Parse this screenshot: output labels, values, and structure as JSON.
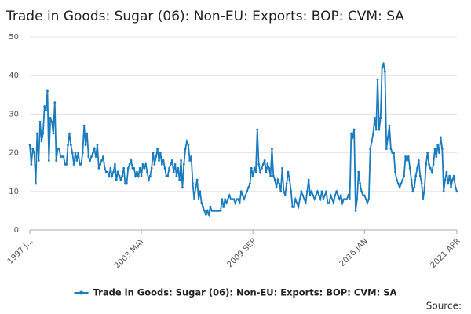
{
  "chart_data": {
    "type": "line",
    "title": "Trade in Goods: Sugar (06): Non-EU: Exports: BOP: CVM: SA",
    "source": "Source:",
    "categories": [
      "1997 J...",
      null,
      null,
      null,
      null,
      null,
      null,
      null,
      null,
      null,
      null,
      null,
      null,
      null,
      null,
      null,
      null,
      null,
      null,
      null,
      null,
      null,
      null,
      null,
      null,
      null,
      null,
      null,
      null,
      null,
      null,
      null,
      null,
      null,
      null,
      null,
      null,
      null,
      null,
      null,
      null,
      null,
      null,
      null,
      null,
      null,
      null,
      null,
      null,
      null,
      null,
      null,
      null,
      null,
      null,
      null,
      null,
      null,
      null,
      null,
      null,
      null,
      null,
      null,
      null,
      null,
      null,
      null,
      null,
      null,
      null,
      null,
      null,
      null,
      null,
      null,
      "2003 MAY",
      null,
      null,
      null,
      null,
      null,
      null,
      null,
      null,
      null,
      null,
      null,
      null,
      null,
      null,
      null,
      null,
      null,
      null,
      null,
      null,
      null,
      null,
      null,
      null,
      null,
      null,
      null,
      null,
      null,
      null,
      null,
      null,
      null,
      null,
      null,
      null,
      null,
      null,
      null,
      null,
      null,
      null,
      null,
      null,
      null,
      null,
      null,
      null,
      null,
      null,
      null,
      null,
      null,
      null,
      null,
      null,
      null,
      null,
      null,
      null,
      null,
      null,
      null,
      null,
      null,
      null,
      null,
      null,
      null,
      null,
      null,
      null,
      null,
      null,
      null,
      "2009 SEP",
      null,
      null,
      null,
      null,
      null,
      null,
      null,
      null,
      null,
      null,
      null,
      null,
      null,
      null,
      null,
      null,
      null,
      null,
      null,
      null,
      null,
      null,
      null,
      null,
      null,
      null,
      null,
      null,
      null,
      null,
      null,
      null,
      null,
      null,
      null,
      null,
      null,
      null,
      null,
      null,
      null,
      null,
      null,
      null,
      null,
      null,
      null,
      null,
      null,
      null,
      null,
      null,
      null,
      null,
      null,
      null,
      null,
      null,
      null,
      null,
      null,
      null,
      null,
      null,
      null,
      null,
      null,
      null,
      null,
      null,
      null,
      null,
      null,
      null,
      null,
      "2016 JAN",
      null,
      null,
      null,
      null,
      null,
      null,
      null,
      null,
      null,
      null,
      null,
      null,
      null,
      null,
      null,
      null,
      null,
      null,
      null,
      null,
      null,
      null,
      null,
      null,
      null,
      null,
      null,
      null,
      null,
      null,
      null,
      null,
      null,
      null,
      null,
      null,
      null,
      null,
      null,
      null,
      null,
      null,
      null,
      null,
      null,
      null,
      null,
      null,
      null,
      null,
      null,
      null,
      null,
      null,
      null,
      null,
      null,
      null,
      null,
      null,
      null,
      null,
      "2021 APR"
    ],
    "series": [
      {
        "name": "Trade in Goods: Sugar (06): Non-EU: Exports: BOP: CVM: SA",
        "color": "#1a7bbf",
        "values": [
          22,
          17,
          21,
          20,
          12,
          25,
          18,
          28,
          23,
          25,
          32,
          31,
          36,
          18,
          29,
          28,
          25,
          33,
          18,
          21,
          21,
          19,
          19,
          19,
          17,
          17,
          22,
          25,
          22,
          20,
          17,
          20,
          18,
          20,
          17,
          17,
          20,
          27,
          22,
          25,
          19,
          18,
          19,
          20,
          21,
          19,
          22,
          16,
          17,
          18,
          19,
          16,
          15,
          15,
          14,
          16,
          14,
          15,
          17,
          13,
          15,
          14,
          13,
          14,
          16,
          12,
          12,
          16,
          17,
          18,
          16,
          16,
          14,
          15,
          14,
          16,
          14,
          17,
          16,
          17,
          15,
          13,
          14,
          16,
          20,
          17,
          19,
          21,
          18,
          20,
          17,
          18,
          16,
          14,
          14,
          16,
          17,
          18,
          15,
          17,
          14,
          16,
          13,
          18,
          11,
          17,
          21,
          23,
          22,
          18,
          19,
          12,
          8,
          11,
          13,
          8,
          10,
          7,
          6,
          5,
          4,
          5,
          4,
          6,
          5,
          5,
          5,
          5,
          5,
          5,
          5,
          8,
          6,
          8,
          7,
          8,
          9,
          8,
          8,
          8,
          7,
          8,
          8,
          7,
          10,
          9,
          8,
          9,
          10,
          11,
          12,
          16,
          14,
          16,
          15,
          26,
          17,
          15,
          16,
          17,
          18,
          15,
          17,
          16,
          14,
          21,
          14,
          13,
          11,
          13,
          12,
          10,
          16,
          10,
          9,
          12,
          15,
          13,
          10,
          6,
          6,
          8,
          7,
          6,
          8,
          10,
          9,
          8,
          7,
          10,
          13,
          9,
          10,
          9,
          8,
          9,
          10,
          9,
          8,
          10,
          8,
          9,
          10,
          7,
          7,
          9,
          8,
          7,
          9,
          10,
          9,
          8,
          9,
          7,
          8,
          8,
          8,
          9,
          8,
          25,
          24,
          26,
          5,
          8,
          15,
          12,
          10,
          9,
          9,
          8,
          7,
          8,
          21,
          23,
          25,
          29,
          26,
          39,
          26,
          29,
          42,
          43,
          41,
          21,
          24,
          27,
          21,
          20,
          20,
          15,
          13,
          12,
          11,
          12,
          13,
          14,
          19,
          18,
          19,
          16,
          13,
          10,
          11,
          14,
          16,
          18,
          14,
          12,
          8,
          11,
          17,
          20,
          17,
          16,
          15,
          17,
          21,
          19,
          22,
          20,
          24,
          21,
          10,
          13,
          15,
          12,
          14,
          11,
          13,
          14,
          11,
          10
        ]
      }
    ],
    "ylim": [
      0,
      50
    ],
    "yticks": [
      0,
      10,
      20,
      30,
      40,
      50
    ],
    "grid": true,
    "legend": "bottom"
  }
}
